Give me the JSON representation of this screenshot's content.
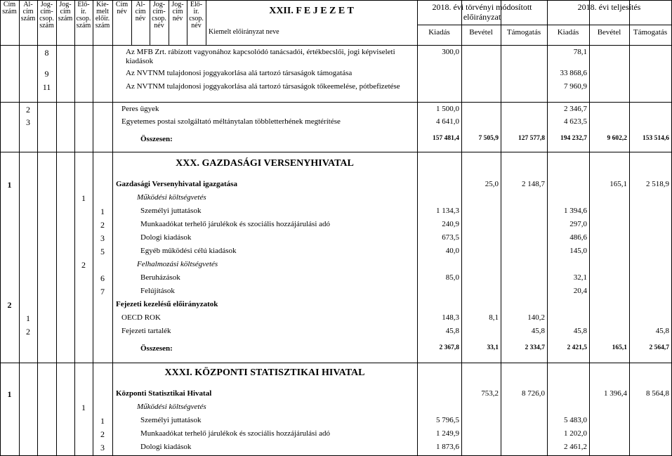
{
  "header": {
    "left_columns": [
      [
        "Cím",
        "szám"
      ],
      [
        "Al-",
        "cím",
        "szám"
      ],
      [
        "Jog-",
        "cím-",
        "csop.",
        "szám"
      ],
      [
        "Jog-",
        "cím",
        "szám"
      ],
      [
        "Elő-",
        "ir.",
        "csop.",
        "szám"
      ],
      [
        "Kie-",
        "melt",
        "előir.",
        "szám"
      ],
      [
        "Cím",
        "név"
      ],
      [
        "Al-",
        "cím",
        "név"
      ],
      [
        "Jog-",
        "cím-",
        "csop.",
        "név"
      ],
      [
        "Jog-",
        "cím",
        "név"
      ],
      [
        "Elő-",
        "ir.",
        "csop.",
        "név"
      ]
    ],
    "title": "XXII. F E J E Z E T",
    "name_column": "Kiemelt előirányzat neve",
    "groups": [
      {
        "title": "2018. évi törvényi módosított előirányzat",
        "columns": [
          "Kiadás",
          "Bevétel",
          "Támogatás"
        ]
      },
      {
        "title": "2018. évi teljesítés",
        "columns": [
          "Kiadás",
          "Bevétel",
          "Támogatás"
        ]
      }
    ]
  },
  "rows": [
    {
      "codes": [
        null,
        null,
        "8",
        null,
        null,
        null
      ],
      "name": "Az MFB Zrt. rábízott vagyonához kapcsolódó tanácsadói, értékbecslői, jogi képviseleti kiadások",
      "values": [
        "300,0",
        null,
        null,
        "78,1",
        null,
        null
      ]
    },
    {
      "codes": [
        null,
        null,
        "9",
        null,
        null,
        null
      ],
      "name": "Az NVTNM tulajdonosi joggyakorlása alá tartozó társaságok támogatása",
      "values": [
        null,
        null,
        null,
        "33 868,6",
        null,
        null
      ]
    },
    {
      "codes": [
        null,
        null,
        "11",
        null,
        null,
        null
      ],
      "name": "Az NVTNM tulajdonosi joggyakorlása alá tartozó társaságok tőkeemelése, pótbefizetése",
      "values": [
        null,
        null,
        null,
        "7 960,9",
        null,
        null
      ]
    },
    {
      "codes": [
        null,
        "2",
        null,
        null,
        null,
        null
      ],
      "name": "Peres ügyek",
      "values": [
        "1 500,0",
        null,
        null,
        "2 346,7",
        null,
        null
      ]
    },
    {
      "codes": [
        null,
        "3",
        null,
        null,
        null,
        null
      ],
      "name": "Egyetemes postai szolgáltató méltánytalan többletterhének megtérítése",
      "values": [
        "4 641,0",
        null,
        null,
        "4 623,5",
        null,
        null
      ]
    },
    {
      "style": "total",
      "name": "Összesen:",
      "values": [
        "157 481,4",
        "7 505,9",
        "127 577,8",
        "194 232,7",
        "9 602,2",
        "153 514,6"
      ]
    },
    {
      "style": "section",
      "name": "XXX. GAZDASÁGI VERSENYHIVATAL"
    },
    {
      "style": "bold",
      "codes": [
        "1",
        null,
        null,
        null,
        null,
        null
      ],
      "name": "Gazdasági Versenyhivatal igazgatása",
      "values": [
        null,
        "25,0",
        "2 148,7",
        null,
        "165,1",
        "2 518,9"
      ]
    },
    {
      "style": "italic",
      "codes": [
        null,
        null,
        null,
        null,
        "1",
        null
      ],
      "name": "Működési költségvetés"
    },
    {
      "codes": [
        null,
        null,
        null,
        null,
        null,
        "1"
      ],
      "name": "Személyi juttatások",
      "values": [
        "1 134,3",
        null,
        null,
        "1 394,6",
        null,
        null
      ]
    },
    {
      "codes": [
        null,
        null,
        null,
        null,
        null,
        "2"
      ],
      "name": "Munkaadókat terhelő járulékok és szociális hozzájárulási adó",
      "values": [
        "240,9",
        null,
        null,
        "297,0",
        null,
        null
      ]
    },
    {
      "codes": [
        null,
        null,
        null,
        null,
        null,
        "3"
      ],
      "name": "Dologi kiadások",
      "values": [
        "673,5",
        null,
        null,
        "486,6",
        null,
        null
      ]
    },
    {
      "codes": [
        null,
        null,
        null,
        null,
        null,
        "5"
      ],
      "name": "Egyéb működési célú kiadások",
      "values": [
        "40,0",
        null,
        null,
        "145,0",
        null,
        null
      ]
    },
    {
      "style": "italic",
      "codes": [
        null,
        null,
        null,
        null,
        "2",
        null
      ],
      "name": "Felhalmozási költségvetés"
    },
    {
      "codes": [
        null,
        null,
        null,
        null,
        null,
        "6"
      ],
      "name": "Beruházások",
      "values": [
        "85,0",
        null,
        null,
        "32,1",
        null,
        null
      ]
    },
    {
      "codes": [
        null,
        null,
        null,
        null,
        null,
        "7"
      ],
      "name": "Felújítások",
      "values": [
        null,
        null,
        null,
        "20,4",
        null,
        null
      ]
    },
    {
      "style": "bold",
      "codes": [
        "2",
        null,
        null,
        null,
        null,
        null
      ],
      "name": "Fejezeti kezelésű előirányzatok"
    },
    {
      "codes": [
        null,
        "1",
        null,
        null,
        null,
        null
      ],
      "name": "OECD ROK",
      "values": [
        "148,3",
        "8,1",
        "140,2",
        null,
        null,
        null
      ]
    },
    {
      "codes": [
        null,
        "2",
        null,
        null,
        null,
        null
      ],
      "name": "Fejezeti tartalék",
      "values": [
        "45,8",
        null,
        "45,8",
        "45,8",
        null,
        "45,8"
      ]
    },
    {
      "style": "total",
      "name": "Összesen:",
      "values": [
        "2 367,8",
        "33,1",
        "2 334,7",
        "2 421,5",
        "165,1",
        "2 564,7"
      ]
    },
    {
      "style": "section",
      "name": "XXXI. KÖZPONTI STATISZTIKAI HIVATAL"
    },
    {
      "style": "bold",
      "codes": [
        "1",
        null,
        null,
        null,
        null,
        null
      ],
      "name": "Központi Statisztikai Hivatal",
      "values": [
        null,
        "753,2",
        "8 726,0",
        null,
        "1 396,4",
        "8 564,8"
      ]
    },
    {
      "style": "italic",
      "codes": [
        null,
        null,
        null,
        null,
        "1",
        null
      ],
      "name": "Működési költségvetés"
    },
    {
      "codes": [
        null,
        null,
        null,
        null,
        null,
        "1"
      ],
      "name": "Személyi juttatások",
      "values": [
        "5 796,5",
        null,
        null,
        "5 483,0",
        null,
        null
      ]
    },
    {
      "codes": [
        null,
        null,
        null,
        null,
        null,
        "2"
      ],
      "name": "Munkaadókat terhelő járulékok és szociális hozzájárulási adó",
      "values": [
        "1 249,9",
        null,
        null,
        "1 202,0",
        null,
        null
      ]
    },
    {
      "codes": [
        null,
        null,
        null,
        null,
        null,
        "3"
      ],
      "name": "Dologi kiadások",
      "values": [
        "1 873,6",
        null,
        null,
        "2 461,2",
        null,
        null
      ]
    }
  ]
}
